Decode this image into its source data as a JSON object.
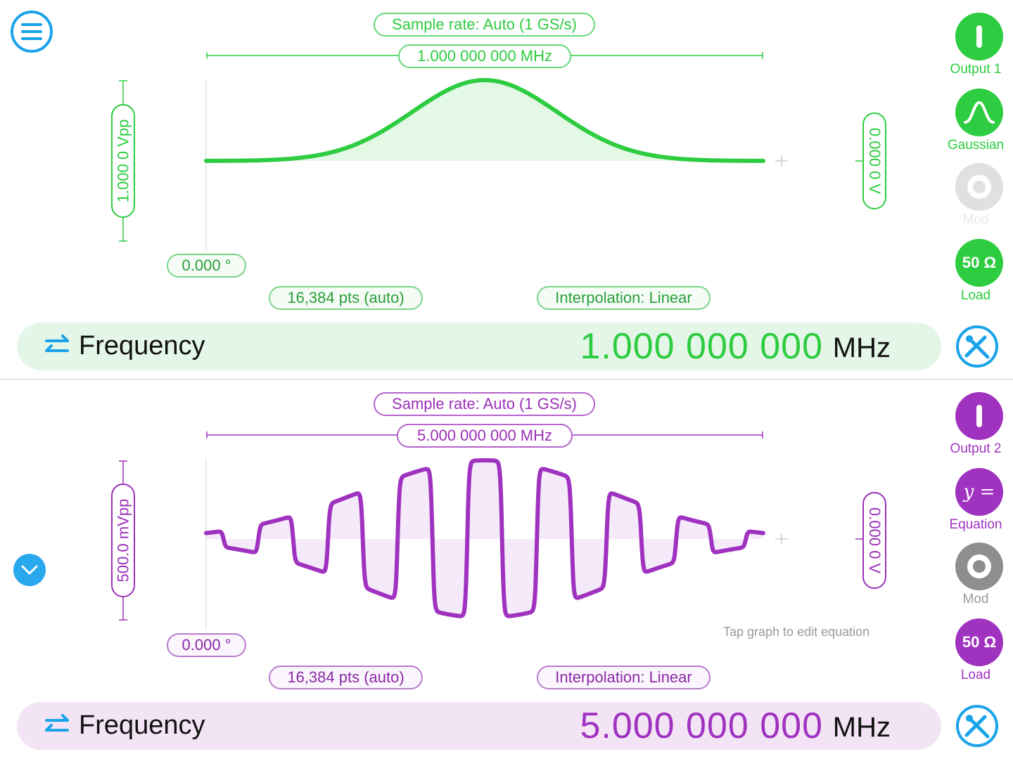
{
  "menu": {
    "icon": "hamburger-menu-icon"
  },
  "channel1": {
    "color": "#2ecc40",
    "sample_rate": "Sample rate: Auto (1 GS/s)",
    "frequency_span": "1.000 000 000 MHz",
    "amplitude": "1.000 0 Vpp",
    "offset": "0.000 0 V",
    "phase": "0.000 °",
    "points": "16,384 pts (auto)",
    "interpolation": "Interpolation: Linear",
    "output_label": "Output 1",
    "waveform_label": "Gaussian",
    "mod_label": "Mod",
    "load_value": "50 Ω",
    "load_label": "Load",
    "freq_label": "Frequency",
    "freq_value": "1.000 000 000",
    "freq_unit": "MHz"
  },
  "channel2": {
    "color": "#a032c0",
    "sample_rate": "Sample rate: Auto (1 GS/s)",
    "frequency_span": "5.000 000 000 MHz",
    "amplitude": "500.0 mVpp",
    "offset": "0.000 0 V",
    "phase": "0.000 °",
    "points": "16,384 pts (auto)",
    "interpolation": "Interpolation: Linear",
    "hint": "Tap graph to edit equation",
    "output_label": "Output 2",
    "waveform_symbol": "y =",
    "waveform_label": "Equation",
    "mod_label": "Mod",
    "load_value": "50 Ω",
    "load_label": "Load",
    "freq_label": "Frequency",
    "freq_value": "5.000 000 000",
    "freq_unit": "MHz"
  }
}
